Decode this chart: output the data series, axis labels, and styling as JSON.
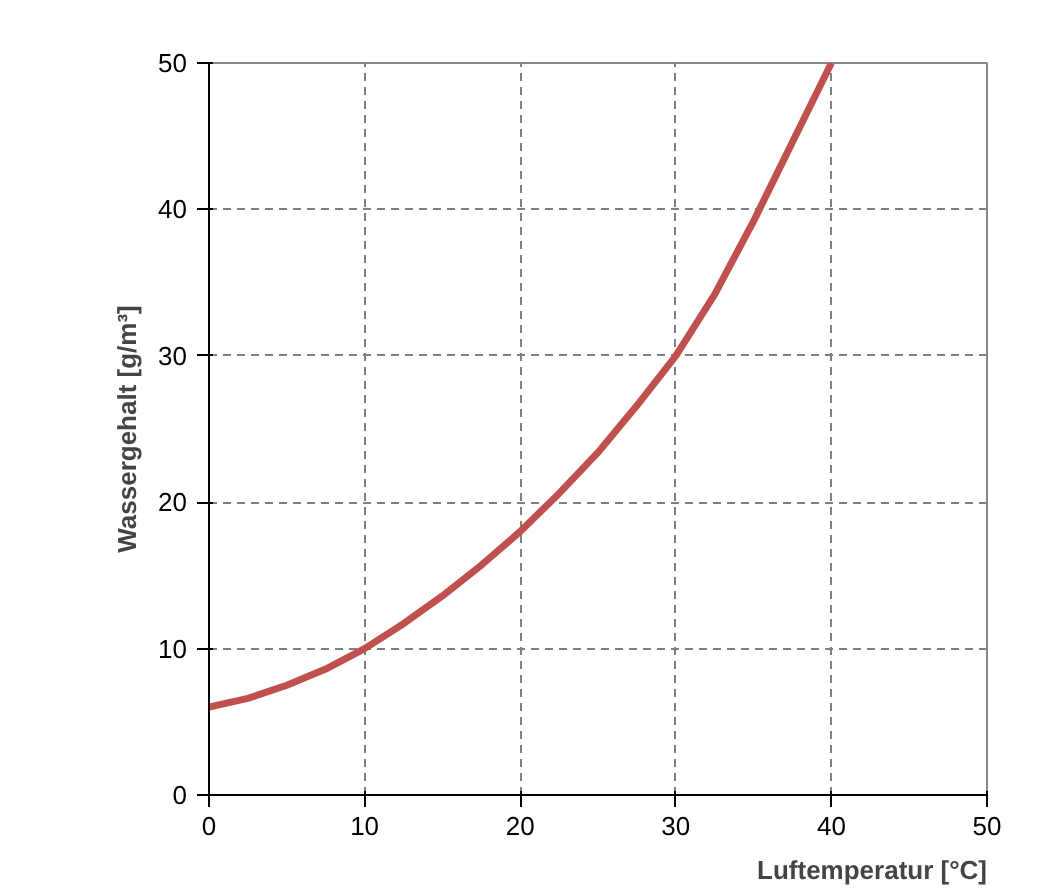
{
  "chart_data": {
    "type": "line",
    "xlabel": "Luftemperatur [°C]",
    "ylabel": "Wassergehalt [g/m³]",
    "x": [
      0,
      2.5,
      5,
      7.5,
      10,
      12.5,
      15,
      17.5,
      20,
      22.5,
      25,
      27.5,
      30,
      32.5,
      35,
      37.5,
      40
    ],
    "series": [
      {
        "color": "#c0504d",
        "values": [
          6,
          6.6,
          7.5,
          8.6,
          10,
          11.7,
          13.6,
          15.7,
          18,
          20.6,
          23.4,
          26.6,
          30,
          34.2,
          39.2,
          44.6,
          50
        ]
      }
    ],
    "xlim": [
      0,
      50
    ],
    "xticks": [
      0,
      10,
      20,
      30,
      40,
      50
    ],
    "ylim": [
      0,
      50
    ],
    "yticks": [
      0,
      10,
      20,
      30,
      40,
      50
    ],
    "grid": true,
    "marker": "none",
    "line_style": "solid"
  }
}
